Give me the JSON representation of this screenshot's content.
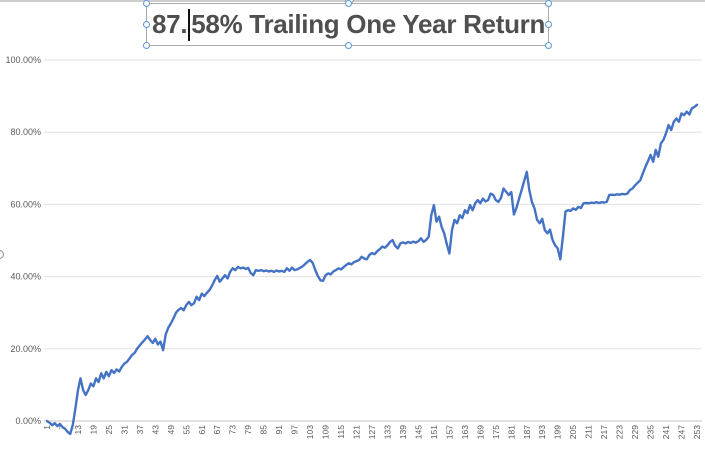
{
  "title_box": {
    "text_before_caret": "87.",
    "text_after_caret": "58% Trailing One Year Return"
  },
  "chart_data": {
    "type": "line",
    "title": "87.58% Trailing One Year Return",
    "xlabel": "",
    "ylabel": "",
    "grid": true,
    "legend": "none",
    "ylim": [
      -5,
      100
    ],
    "y_tick_values": [
      0,
      20,
      40,
      60,
      80,
      100
    ],
    "y_tick_labels": [
      "0.00%",
      "20.00%",
      "40.00%",
      "60.00%",
      "80.00%",
      "100.00%"
    ],
    "x_tick_labels": [
      "1",
      "7",
      "13",
      "19",
      "25",
      "31",
      "37",
      "43",
      "49",
      "55",
      "61",
      "67",
      "73",
      "79",
      "85",
      "91",
      "97",
      "103",
      "109",
      "115",
      "121",
      "127",
      "133",
      "139",
      "145",
      "151",
      "157",
      "163",
      "169",
      "175",
      "181",
      "187",
      "193",
      "199",
      "205",
      "211",
      "217",
      "223",
      "229",
      "235",
      "241",
      "247",
      "253"
    ],
    "line_color": "#4472c4",
    "gridline_color": "#e3e3e3",
    "axis_line_color": "#c6c6c6",
    "axis_label_color": "#595959",
    "series": [
      {
        "name": "Trailing One Year Return (%)",
        "x_start": 1,
        "x_step": 1,
        "values": [
          0.0,
          -0.5,
          -1.2,
          -0.6,
          -1.4,
          -0.8,
          -1.7,
          -2.2,
          -3.0,
          -3.6,
          -1.1,
          3.5,
          8.6,
          11.8,
          8.6,
          7.2,
          8.6,
          10.4,
          9.6,
          11.8,
          10.8,
          13.2,
          11.8,
          13.6,
          12.4,
          14.1,
          13.3,
          14.3,
          13.7,
          15.0,
          15.9,
          16.4,
          17.3,
          18.3,
          18.9,
          20.1,
          21.0,
          21.8,
          22.6,
          23.5,
          22.4,
          21.6,
          22.8,
          21.2,
          22.0,
          19.6,
          24.0,
          25.8,
          27.0,
          28.4,
          30.0,
          30.8,
          31.3,
          30.7,
          32.1,
          33.0,
          32.1,
          32.6,
          34.4,
          33.5,
          35.3,
          34.6,
          35.5,
          36.3,
          37.5,
          39.0,
          40.2,
          38.6,
          39.5,
          40.4,
          39.5,
          41.3,
          42.3,
          41.8,
          42.7,
          42.3,
          42.5,
          42.1,
          42.4,
          41.0,
          40.4,
          41.8,
          41.6,
          41.8,
          41.5,
          41.7,
          41.4,
          41.6,
          41.3,
          41.7,
          41.4,
          41.6,
          41.3,
          42.3,
          41.6,
          42.5,
          41.8,
          42.0,
          42.4,
          42.8,
          43.4,
          44.1,
          44.6,
          43.8,
          41.8,
          40.2,
          39.0,
          38.8,
          40.4,
          40.9,
          40.6,
          41.4,
          41.8,
          42.3,
          42.0,
          42.6,
          43.2,
          43.7,
          43.4,
          44.0,
          44.3,
          44.6,
          45.5,
          45.0,
          44.8,
          46.0,
          46.5,
          46.2,
          47.0,
          47.6,
          48.3,
          48.0,
          48.7,
          49.6,
          50.1,
          48.5,
          47.8,
          49.2,
          49.5,
          49.2,
          49.6,
          49.3,
          49.7,
          49.4,
          49.8,
          50.6,
          49.6,
          50.2,
          51.0,
          57.0,
          59.8,
          55.2,
          56.6,
          53.8,
          52.0,
          49.0,
          46.4,
          52.9,
          55.7,
          54.8,
          57.0,
          56.2,
          58.4,
          57.6,
          59.8,
          58.4,
          60.3,
          61.2,
          60.3,
          61.6,
          60.8,
          61.2,
          63.0,
          62.6,
          61.2,
          60.7,
          61.8,
          64.4,
          63.5,
          62.6,
          63.4,
          57.2,
          59.0,
          61.5,
          64.0,
          66.5,
          69.0,
          64.0,
          60.7,
          58.9,
          55.7,
          54.8,
          56.0,
          52.9,
          52.0,
          53.0,
          50.1,
          48.7,
          47.8,
          44.8,
          51.0,
          58.0,
          58.4,
          58.2,
          58.9,
          58.5,
          59.3,
          59.0,
          60.3,
          60.4,
          60.3,
          60.5,
          60.4,
          60.6,
          60.4,
          60.6,
          60.5,
          60.7,
          62.6,
          62.7,
          62.6,
          62.8,
          62.7,
          62.9,
          62.8,
          63.0,
          64.0,
          64.4,
          65.3,
          66.0,
          66.7,
          68.6,
          70.4,
          72.0,
          73.7,
          71.8,
          75.1,
          73.2,
          76.9,
          77.9,
          79.7,
          82.0,
          80.6,
          82.9,
          83.8,
          82.9,
          85.2,
          84.7,
          85.7,
          84.9,
          86.6,
          87.0,
          87.58
        ]
      }
    ]
  }
}
